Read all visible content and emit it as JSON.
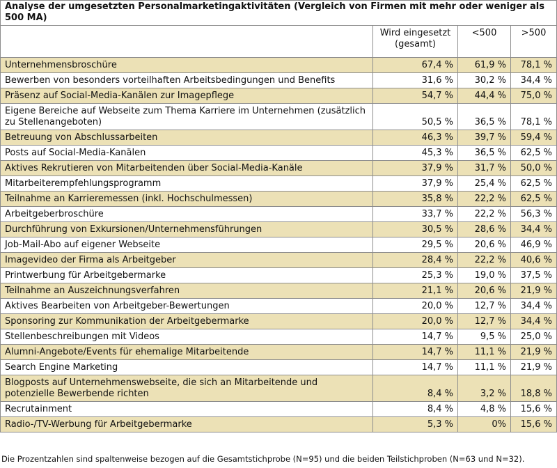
{
  "title": "Analyse der umgesetzten Personalmarketingaktivitäten (Vergleich von Firmen mit mehr oder weniger als 500 MA)",
  "table": {
    "header": [
      "Wird eingesetzt (gesamt)",
      "<500",
      ">500"
    ],
    "rows": [
      [
        "Unternehmensbroschüre",
        "67,4 %",
        "61,9 %",
        "78,1 %"
      ],
      [
        "Bewerben von besonders vorteilhaften Arbeitsbedingungen und Benefits",
        "31,6 %",
        "30,2 %",
        "34,4 %"
      ],
      [
        "Präsenz auf Social-Media-Kanälen zur Imagepflege",
        "54,7 %",
        "44,4 %",
        "75,0 %"
      ],
      [
        "Eigene Bereiche auf Webseite zum Thema Karriere im Unternehmen (zusätzlich zu Stellenangeboten)",
        "50,5 %",
        "36,5 %",
        "78,1 %"
      ],
      [
        "Betreuung von Abschlussarbeiten",
        "46,3 %",
        "39,7 %",
        "59,4 %"
      ],
      [
        "Posts auf Social-Media-Kanälen",
        "45,3 %",
        "36,5 %",
        "62,5 %"
      ],
      [
        "Aktives Rekrutieren von Mitarbeitenden über Social-Media-Kanäle",
        "37,9 %",
        "31,7 %",
        "50,0 %"
      ],
      [
        "Mitarbeiterempfehlungsprogramm",
        "37,9 %",
        "25,4 %",
        "62,5 %"
      ],
      [
        "Teilnahme an Karrieremessen (inkl. Hochschulmessen)",
        "35,8 %",
        "22,2 %",
        "62,5 %"
      ],
      [
        "Arbeitgeberbroschüre",
        "33,7 %",
        "22,2 %",
        "56,3 %"
      ],
      [
        "Durchführung von Exkursionen/Unternehmensführungen",
        "30,5 %",
        "28,6 %",
        "34,4 %"
      ],
      [
        "Job-Mail-Abo auf eigener Webseite",
        "29,5 %",
        "20,6 %",
        "46,9 %"
      ],
      [
        "Imagevideo der Firma als Arbeitgeber",
        "28,4 %",
        "22,2 %",
        "40,6 %"
      ],
      [
        "Printwerbung für Arbeitgebermarke",
        "25,3 %",
        "19,0 %",
        "37,5 %"
      ],
      [
        "Teilnahme an Auszeichnungsverfahren",
        "21,1 %",
        "20,6 %",
        "21,9 %"
      ],
      [
        "Aktives Bearbeiten von Arbeitgeber-Bewertungen",
        "20,0 %",
        "12,7 %",
        "34,4 %"
      ],
      [
        "Sponsoring zur Kommunikation der Arbeitgebermarke",
        "20,0 %",
        "12,7 %",
        "34,4 %"
      ],
      [
        "Stellenbeschreibungen mit Videos",
        "14,7 %",
        "9,5 %",
        "25,0 %"
      ],
      [
        "Alumni-Angebote/Events für ehemalige Mitarbeitende",
        "14,7 %",
        "11,1 %",
        "21,9 %"
      ],
      [
        "Search Engine Marketing",
        "14,7 %",
        "11,1 %",
        "21,9 %"
      ],
      [
        "Blogposts auf Unternehmenswebseite, die sich an Mitarbeitende und potenzielle Bewerbende richten",
        "8,4 %",
        "3,2 %",
        "18,8 %"
      ],
      [
        "Recrutainment",
        "8,4 %",
        "4,8 %",
        "15,6 %"
      ],
      [
        "Radio-/TV-Werbung für Arbeitgebermarke",
        "5,3 %",
        "0%",
        "15,6 %"
      ]
    ]
  },
  "footnote": "Die Prozentzahlen sind spaltenweise bezogen auf die Gesamtstichprobe (N=95) und die beiden Teilstichproben (N=63 und N=32)."
}
